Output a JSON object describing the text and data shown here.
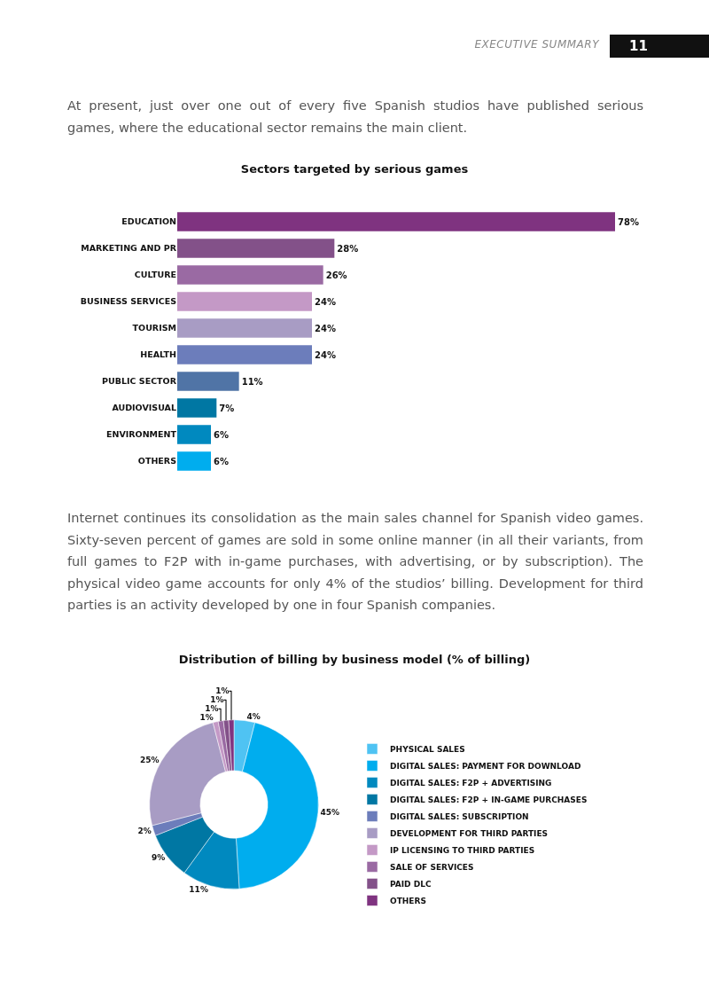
{
  "chart_data": [
    {
      "type": "bar",
      "title": "Sectors targeted by serious games",
      "orientation": "horizontal",
      "data_labels": true,
      "categories": [
        "EDUCATION",
        "MARKETING AND PR",
        "CULTURE",
        "BUSINESS SERVICES",
        "TOURISM",
        "HEALTH",
        "PUBLIC SECTOR",
        "AUDIOVISUAL",
        "ENVIRONMENT",
        "OTHERS"
      ],
      "values": [
        78,
        28,
        26,
        24,
        24,
        24,
        11,
        7,
        6,
        6
      ],
      "value_labels": [
        "78%",
        "28%",
        "26%",
        "24%",
        "24%",
        "24%",
        "11%",
        "7%",
        "6%",
        "6%"
      ],
      "colors": [
        "#7f3380",
        "#835189",
        "#9a6aa3",
        "#c499c6",
        "#a89cc4",
        "#6c7dbb",
        "#5074a6",
        "#0077a3",
        "#0089bf",
        "#00adee"
      ],
      "annotations": [
        "EXECUTIVE SUMMARY",
        "11",
        "At present, just over one out of every five Spanish studios have published serious games, where the educational sector remains the main client."
      ]
    },
    {
      "type": "donut",
      "title": "Distribution of billing by business model (% of billing)",
      "legend": "right",
      "data_labels": true,
      "categories": [
        "PHYSICAL SALES",
        "DIGITAL SALES: PAYMENT FOR DOWNLOAD",
        "DIGITAL SALES: F2P + ADVERTISING",
        "DIGITAL SALES: F2P + IN-GAME PURCHASES",
        "DIGITAL SALES: SUBSCRIPTION",
        "DEVELOPMENT FOR THIRD PARTIES",
        "IP LICENSING TO THIRD PARTIES",
        "SALE OF SERVICES",
        "PAID DLC",
        "OTHERS"
      ],
      "values": [
        4,
        45,
        11,
        9,
        2,
        25,
        1,
        1,
        1,
        1
      ],
      "value_labels": [
        "4%",
        "45%",
        "11%",
        "9%",
        "2%",
        "25%",
        "1%",
        "1%",
        "1%",
        "1%"
      ],
      "colors": [
        "#4fc3f3",
        "#00adee",
        "#0089bf",
        "#0077a3",
        "#6c7dbb",
        "#a89cc4",
        "#c499c6",
        "#9a6aa3",
        "#835189",
        "#7f3380"
      ],
      "annotations": [
        "Internet continues its consolidation as the main sales channel for Spanish video games. Sixty-seven percent of games are sold in some online manner (in all their variants, from full games to F2P with in-game purchases, with advertising, or by subscription). The physical video game accounts for only 4% of the studios’ billing. Development for third parties is an activity developed by one in four Spanish companies."
      ]
    }
  ]
}
